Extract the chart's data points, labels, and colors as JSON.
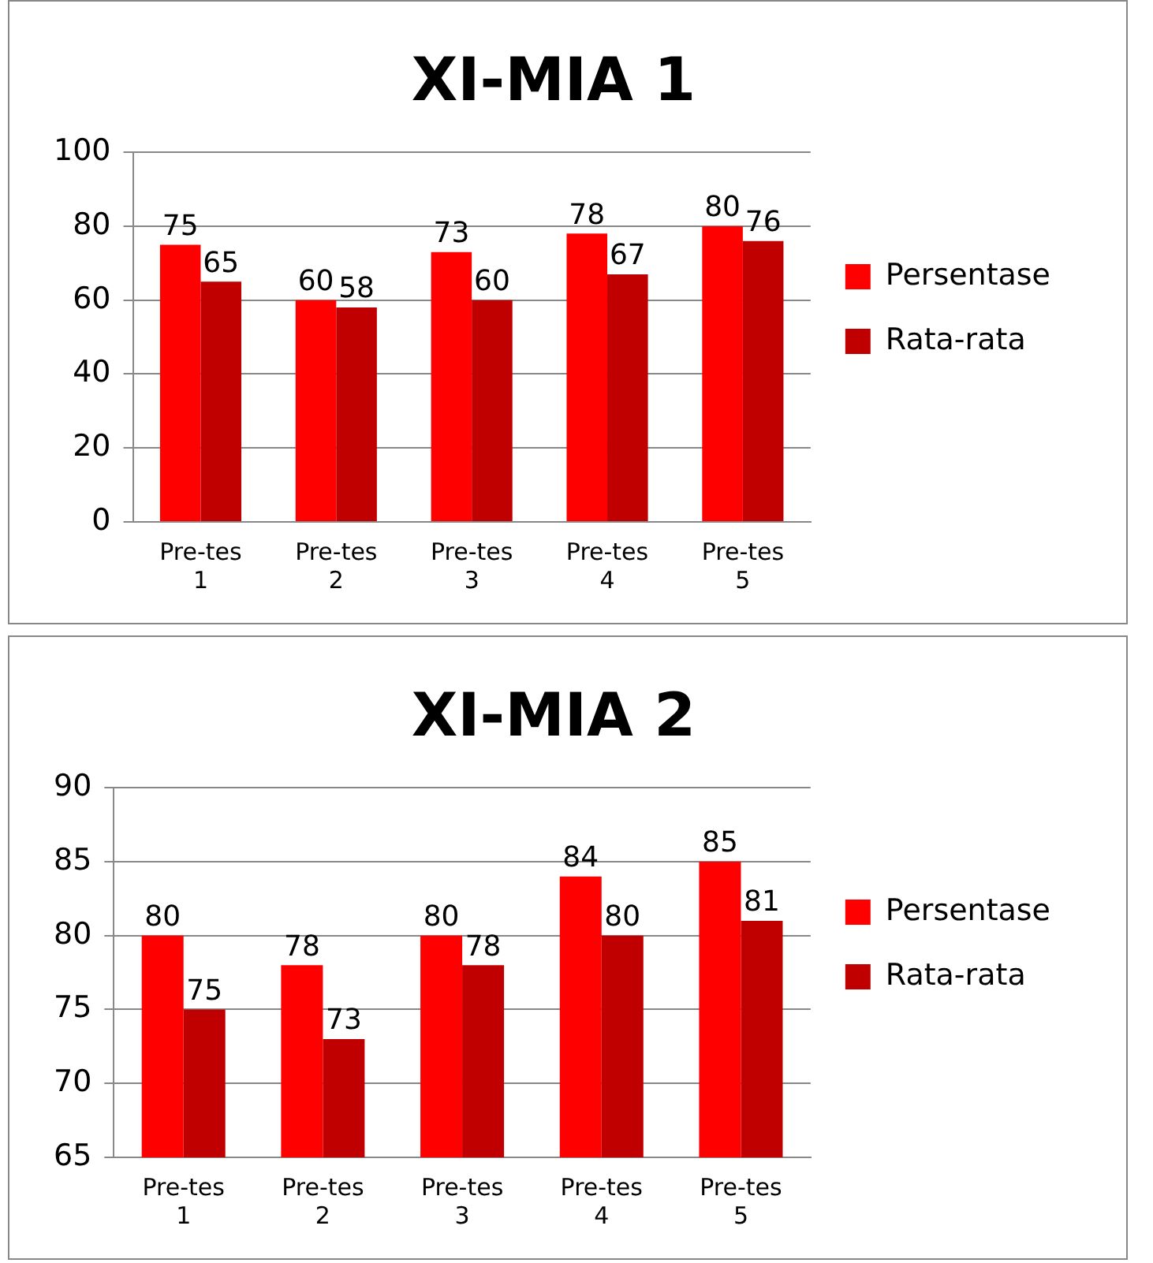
{
  "chart_data": [
    {
      "type": "bar",
      "title": "XI-MIA 1",
      "categories": [
        "Pre-tes 1",
        "Pre-tes 2",
        "Pre-tes 3",
        "Pre-tes 4",
        "Pre-tes 5"
      ],
      "series": [
        {
          "name": "Persentase",
          "color": "#ff0000",
          "values": [
            75,
            60,
            73,
            78,
            80
          ]
        },
        {
          "name": "Rata-rata",
          "color": "#c00000",
          "values": [
            65,
            58,
            60,
            67,
            76
          ]
        }
      ],
      "ylim": [
        0,
        100
      ],
      "yticks": [
        0,
        20,
        40,
        60,
        80,
        100
      ],
      "grid": "y",
      "legend": "right",
      "data_labels": true
    },
    {
      "type": "bar",
      "title": "XI-MIA 2",
      "categories": [
        "Pre-tes 1",
        "Pre-tes 2",
        "Pre-tes 3",
        "Pre-tes 4",
        "Pre-tes 5"
      ],
      "series": [
        {
          "name": "Persentase",
          "color": "#ff0000",
          "values": [
            80,
            78,
            80,
            84,
            85
          ]
        },
        {
          "name": "Rata-rata",
          "color": "#c00000",
          "values": [
            75,
            73,
            78,
            80,
            81
          ]
        }
      ],
      "ylim": [
        65,
        90
      ],
      "yticks": [
        65,
        70,
        75,
        80,
        85,
        90
      ],
      "grid": "y",
      "legend": "right",
      "data_labels": true
    }
  ]
}
